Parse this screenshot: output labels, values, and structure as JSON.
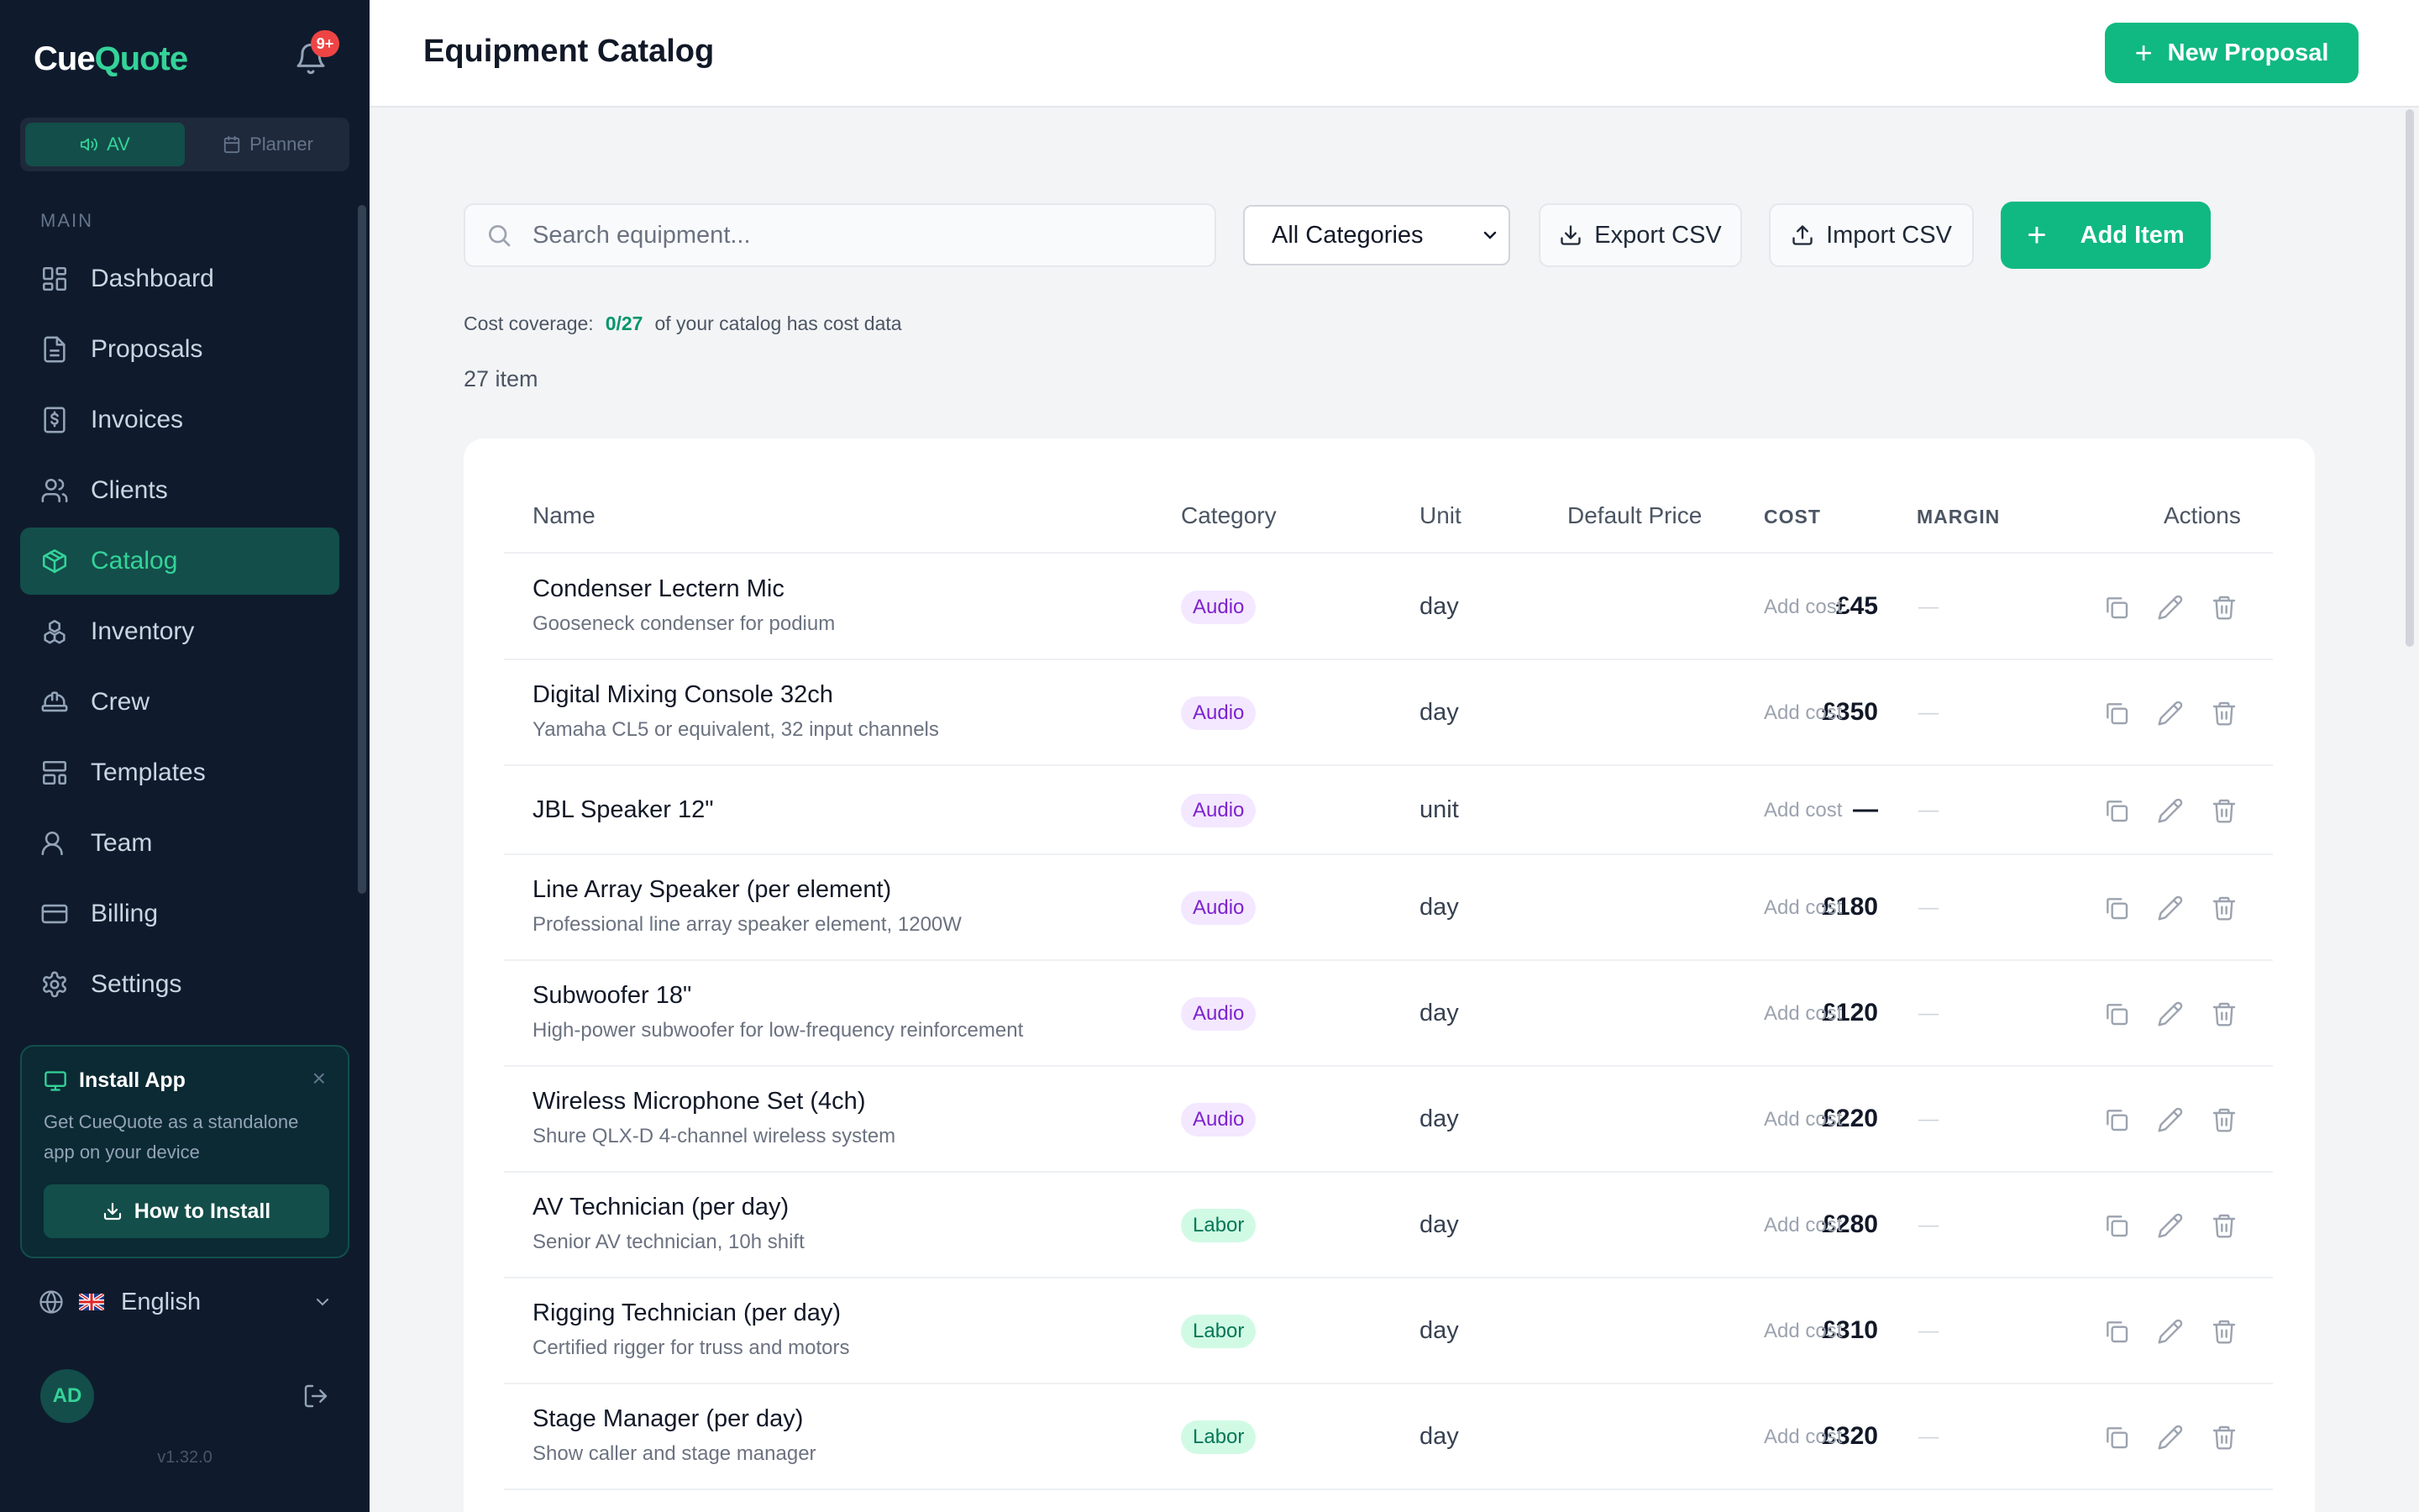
{
  "app": {
    "logo_part1": "Cue",
    "logo_part2": "Quote",
    "notification_badge": "9+",
    "modes": {
      "av": "AV",
      "planner": "Planner"
    },
    "section_main": "MAIN",
    "version": "v1.32.0"
  },
  "sidebar": {
    "items": [
      {
        "label": "Dashboard",
        "icon": "dashboard-icon"
      },
      {
        "label": "Proposals",
        "icon": "document-icon"
      },
      {
        "label": "Invoices",
        "icon": "invoice-icon"
      },
      {
        "label": "Clients",
        "icon": "clients-icon"
      },
      {
        "label": "Catalog",
        "icon": "box-icon",
        "active": true
      },
      {
        "label": "Inventory",
        "icon": "boxes-icon"
      },
      {
        "label": "Crew",
        "icon": "hard-hat-icon"
      },
      {
        "label": "Templates",
        "icon": "template-icon"
      },
      {
        "label": "Team",
        "icon": "user-icon"
      },
      {
        "label": "Billing",
        "icon": "credit-card-icon"
      },
      {
        "label": "Settings",
        "icon": "gear-icon"
      }
    ]
  },
  "install_card": {
    "title": "Install App",
    "description": "Get CueQuote as a standalone app on your device",
    "button": "How to Install"
  },
  "language": {
    "selected": "English"
  },
  "user": {
    "initials": "AD"
  },
  "header": {
    "title": "Equipment Catalog",
    "new_proposal": "New Proposal"
  },
  "toolbar": {
    "search_placeholder": "Search equipment...",
    "category_selected": "All Categories",
    "export_label": "Export CSV",
    "import_label": "Import CSV",
    "add_label": "Add Item"
  },
  "summary": {
    "coverage_prefix": "Cost coverage:",
    "coverage_value": "0/27",
    "coverage_suffix": "of your catalog has cost data",
    "item_count": "27 item"
  },
  "table": {
    "columns": {
      "name": "Name",
      "category": "Category",
      "unit": "Unit",
      "default_price": "Default Price",
      "cost": "COST",
      "margin": "MARGIN",
      "actions": "Actions"
    },
    "rows": [
      {
        "name": "Condenser Lectern Mic",
        "description": "Gooseneck condenser for podium",
        "category": "Audio",
        "unit": "day",
        "price": "£45",
        "cost": "Add cost",
        "margin": "—"
      },
      {
        "name": "Digital Mixing Console 32ch",
        "description": "Yamaha CL5 or equivalent, 32 input channels",
        "category": "Audio",
        "unit": "day",
        "price": "£350",
        "cost": "Add cost",
        "margin": "—"
      },
      {
        "name": "JBL Speaker 12\"",
        "description": "",
        "category": "Audio",
        "unit": "unit",
        "price": "—",
        "cost": "Add cost",
        "margin": "—"
      },
      {
        "name": "Line Array Speaker (per element)",
        "description": "Professional line array speaker element, 1200W",
        "category": "Audio",
        "unit": "day",
        "price": "£180",
        "cost": "Add cost",
        "margin": "—"
      },
      {
        "name": "Subwoofer 18\"",
        "description": "High-power subwoofer for low-frequency reinforcement",
        "category": "Audio",
        "unit": "day",
        "price": "£120",
        "cost": "Add cost",
        "margin": "—"
      },
      {
        "name": "Wireless Microphone Set (4ch)",
        "description": "Shure QLX-D 4-channel wireless system",
        "category": "Audio",
        "unit": "day",
        "price": "£220",
        "cost": "Add cost",
        "margin": "—"
      },
      {
        "name": "AV Technician (per day)",
        "description": "Senior AV technician, 10h shift",
        "category": "Labor",
        "unit": "day",
        "price": "£280",
        "cost": "Add cost",
        "margin": "—"
      },
      {
        "name": "Rigging Technician (per day)",
        "description": "Certified rigger for truss and motors",
        "category": "Labor",
        "unit": "day",
        "price": "£310",
        "cost": "Add cost",
        "margin": "—"
      },
      {
        "name": "Stage Manager (per day)",
        "description": "Show caller and stage manager",
        "category": "Labor",
        "unit": "day",
        "price": "£320",
        "cost": "Add cost",
        "margin": "—"
      }
    ]
  },
  "colors": {
    "sidebar_bg": "#0f1b2d",
    "accent": "#10b981",
    "active_bg": "#134e4a",
    "audio_badge": "#7e22ce",
    "labor_badge": "#047857"
  }
}
